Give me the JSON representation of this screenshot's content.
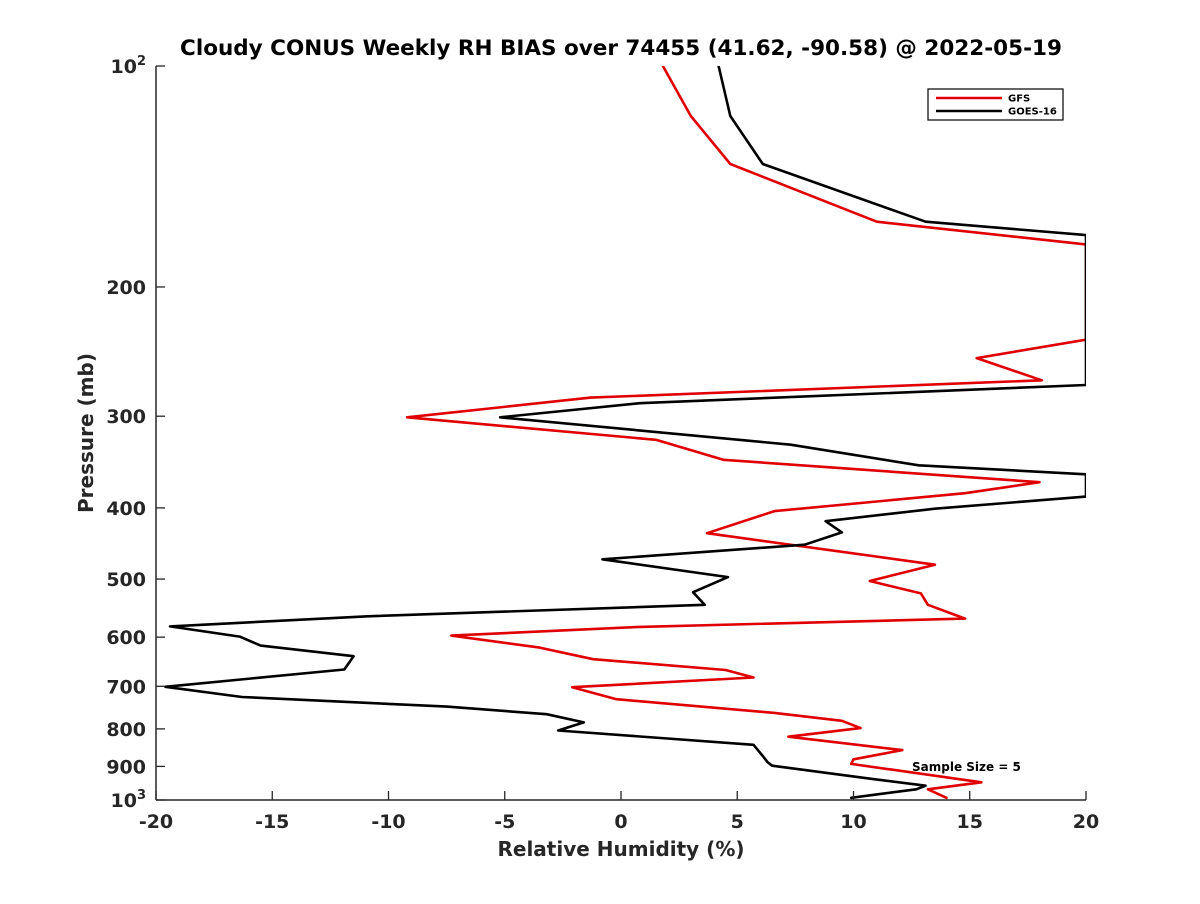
{
  "chart_data": {
    "type": "line",
    "title": "Cloudy CONUS Weekly RH BIAS over 74455 (41.62, -90.58) @ 2022-05-19",
    "xlabel": "Relative Humidity (%)",
    "ylabel": "Pressure (mb)",
    "xlim": [
      -20,
      20
    ],
    "ylim": [
      100,
      1000
    ],
    "y_scale": "log",
    "y_reversed": true,
    "grid": false,
    "legend_position": "top-right",
    "annotation": "Sample Size = 5",
    "x_ticks": [
      -20,
      -15,
      -10,
      -5,
      0,
      5,
      10,
      15,
      20
    ],
    "x_tick_labels": [
      "-20",
      "-15",
      "-10",
      "-5",
      "0",
      "5",
      "10",
      "15",
      "20"
    ],
    "y_ticks": [
      100,
      200,
      300,
      400,
      500,
      600,
      700,
      800,
      900,
      1000
    ],
    "y_tick_labels": [
      {
        "base": "10",
        "exp": "2"
      },
      {
        "base": "200",
        "exp": ""
      },
      {
        "base": "300",
        "exp": ""
      },
      {
        "base": "400",
        "exp": ""
      },
      {
        "base": "500",
        "exp": ""
      },
      {
        "base": "600",
        "exp": ""
      },
      {
        "base": "700",
        "exp": ""
      },
      {
        "base": "800",
        "exp": ""
      },
      {
        "base": "900",
        "exp": ""
      },
      {
        "base": "10",
        "exp": "3"
      }
    ],
    "series": [
      {
        "name": "GFS",
        "color": "#e00000",
        "points": [
          [
            1.8,
            100
          ],
          [
            3.0,
            117
          ],
          [
            4.7,
            136
          ],
          [
            11.0,
            163
          ],
          [
            20.0,
            175
          ],
          [
            20.0,
            236
          ],
          [
            15.3,
            250
          ],
          [
            18.1,
            268
          ],
          [
            -1.3,
            283
          ],
          [
            -9.2,
            301
          ],
          [
            1.5,
            323
          ],
          [
            4.4,
            344
          ],
          [
            18.0,
            369
          ],
          [
            14.8,
            382
          ],
          [
            6.6,
            404
          ],
          [
            3.7,
            433
          ],
          [
            13.5,
            478
          ],
          [
            10.7,
            503
          ],
          [
            12.9,
            523
          ],
          [
            13.2,
            542
          ],
          [
            14.8,
            566
          ],
          [
            0.8,
            581
          ],
          [
            -7.3,
            597
          ],
          [
            -3.5,
            620
          ],
          [
            -1.2,
            643
          ],
          [
            4.5,
            665
          ],
          [
            5.7,
            681
          ],
          [
            -2.1,
            702
          ],
          [
            -0.2,
            729
          ],
          [
            6.6,
            761
          ],
          [
            9.5,
            780
          ],
          [
            10.3,
            798
          ],
          [
            7.2,
            820
          ],
          [
            12.1,
            855
          ],
          [
            10.0,
            880
          ],
          [
            9.9,
            893
          ],
          [
            15.5,
            946
          ],
          [
            13.2,
            967
          ],
          [
            14.0,
            993
          ]
        ]
      },
      {
        "name": "GOES-16",
        "color": "#000000",
        "points": [
          [
            4.2,
            100
          ],
          [
            4.7,
            117
          ],
          [
            6.1,
            136
          ],
          [
            13.1,
            163
          ],
          [
            20.0,
            170
          ],
          [
            20.0,
            272
          ],
          [
            0.8,
            288
          ],
          [
            -5.2,
            301
          ],
          [
            7.3,
            328
          ],
          [
            12.8,
            350
          ],
          [
            20.0,
            360
          ],
          [
            20.0,
            386
          ],
          [
            13.5,
            401
          ],
          [
            8.8,
            417
          ],
          [
            9.5,
            432
          ],
          [
            7.9,
            449
          ],
          [
            -0.8,
            470
          ],
          [
            4.6,
            497
          ],
          [
            3.1,
            521
          ],
          [
            3.6,
            542
          ],
          [
            -10.9,
            562
          ],
          [
            -19.4,
            580
          ],
          [
            -16.4,
            599
          ],
          [
            -15.5,
            616
          ],
          [
            -11.5,
            637
          ],
          [
            -11.9,
            664
          ],
          [
            -19.6,
            701
          ],
          [
            -16.3,
            724
          ],
          [
            -7.5,
            746
          ],
          [
            -3.2,
            764
          ],
          [
            -1.6,
            784
          ],
          [
            -2.7,
            804
          ],
          [
            5.7,
            841
          ],
          [
            6.1,
            871
          ],
          [
            6.3,
            888
          ],
          [
            6.5,
            898
          ],
          [
            10.8,
            936
          ],
          [
            13.1,
            956
          ],
          [
            12.7,
            967
          ],
          [
            9.9,
            993
          ]
        ]
      }
    ]
  }
}
